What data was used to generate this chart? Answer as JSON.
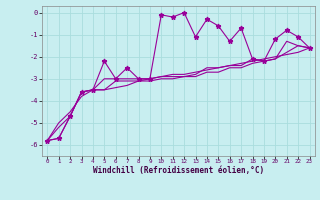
{
  "xlabel": "Windchill (Refroidissement éolien,°C)",
  "bg_color": "#c8eef0",
  "line_color": "#990099",
  "grid_color": "#aadddd",
  "x_values": [
    0,
    1,
    2,
    3,
    4,
    5,
    6,
    7,
    8,
    9,
    10,
    11,
    12,
    13,
    14,
    15,
    16,
    17,
    18,
    19,
    20,
    21,
    22,
    23
  ],
  "series1": [
    -5.8,
    -5.7,
    -4.7,
    -3.6,
    -3.5,
    -2.2,
    -3.0,
    -2.5,
    -3.0,
    -3.0,
    -0.1,
    -0.2,
    0.0,
    -1.1,
    -0.3,
    -0.6,
    -1.3,
    -0.7,
    -2.1,
    -2.2,
    -1.2,
    -0.8,
    -1.1,
    -1.6
  ],
  "series2": [
    -5.8,
    -5.7,
    -4.7,
    -3.6,
    -3.5,
    -3.0,
    -3.0,
    -3.0,
    -3.0,
    -3.0,
    -2.9,
    -2.9,
    -2.9,
    -2.8,
    -2.5,
    -2.5,
    -2.4,
    -2.4,
    -2.1,
    -2.2,
    -2.1,
    -1.3,
    -1.5,
    -1.6
  ],
  "series3": [
    -5.8,
    -5.2,
    -4.7,
    -3.6,
    -3.5,
    -3.5,
    -3.1,
    -3.1,
    -3.1,
    -3.1,
    -3.0,
    -3.0,
    -2.9,
    -2.9,
    -2.7,
    -2.7,
    -2.5,
    -2.5,
    -2.3,
    -2.2,
    -2.1,
    -1.8,
    -1.5,
    -1.6
  ],
  "series4": [
    -5.8,
    -5.0,
    -4.5,
    -3.8,
    -3.5,
    -3.5,
    -3.4,
    -3.3,
    -3.1,
    -3.0,
    -2.9,
    -2.8,
    -2.8,
    -2.7,
    -2.6,
    -2.5,
    -2.4,
    -2.3,
    -2.2,
    -2.1,
    -2.0,
    -1.9,
    -1.8,
    -1.6
  ],
  "ylim": [
    -6.5,
    0.3
  ],
  "xlim": [
    -0.5,
    23.5
  ],
  "yticks": [
    0,
    -1,
    -2,
    -3,
    -4,
    -5,
    -6
  ],
  "xticks": [
    0,
    1,
    2,
    3,
    4,
    5,
    6,
    7,
    8,
    9,
    10,
    11,
    12,
    13,
    14,
    15,
    16,
    17,
    18,
    19,
    20,
    21,
    22,
    23
  ],
  "marker": "*",
  "markersize": 3.5,
  "linewidth": 0.8
}
